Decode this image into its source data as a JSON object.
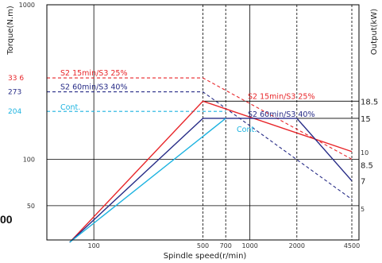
{
  "chart_data": {
    "type": "line",
    "ylabel_left": "Torque(N.m)",
    "ylabel_right": "Output(kW)",
    "xlabel": "Spindle speed(r/min)",
    "x_scale": "log",
    "y_scale": "log",
    "xlim": [
      50,
      5000
    ],
    "ylim_torque": [
      30,
      1000
    ],
    "ylim_output": [
      3.4,
      60
    ],
    "grid": true,
    "x_ticks": [
      {
        "value": 100,
        "label": "100"
      },
      {
        "value": 500,
        "label": "500"
      },
      {
        "value": 700,
        "label": "700"
      },
      {
        "value": 1000,
        "label": "1000"
      },
      {
        "value": 2000,
        "label": "2000"
      },
      {
        "value": 4500,
        "label": "4500"
      }
    ],
    "y_ticks_torque": [
      {
        "value": 50,
        "label": "50"
      },
      {
        "value": 100,
        "label": "100"
      },
      {
        "value": 1000,
        "label": "1000"
      }
    ],
    "y_ticks_output": [
      {
        "value": 5,
        "label": "5"
      },
      {
        "value": 7,
        "label": "7"
      },
      {
        "value": 8.5,
        "label": "8.5"
      },
      {
        "value": 10,
        "label": "10"
      },
      {
        "value": 15,
        "label": "15"
      },
      {
        "value": 18.5,
        "label": "18.5"
      }
    ],
    "torque_levels": [
      {
        "value": 336,
        "label": "33 6",
        "color": "#e8262a"
      },
      {
        "value": 273,
        "label": "273",
        "color": "#262b86"
      },
      {
        "value": 204,
        "label": "204",
        "color": "#1cb3e0"
      }
    ],
    "series": [
      {
        "label": "S2 15min/S3 25%",
        "color": "#e8262a",
        "torque": 336,
        "output_kw": 18.5,
        "output_points": [
          [
            70,
            0
          ],
          [
            500,
            18.5
          ],
          [
            4500,
            10
          ]
        ]
      },
      {
        "label": "S2 60min/S3 40%",
        "color": "#262b86",
        "torque": 273,
        "output_kw": 15,
        "output_points": [
          [
            70,
            0
          ],
          [
            500,
            15
          ],
          [
            2000,
            15
          ],
          [
            4500,
            7
          ]
        ]
      },
      {
        "label": "Cont.",
        "color": "#1cb3e0",
        "torque": 204,
        "output_kw": 15,
        "output_points": [
          [
            70,
            0
          ],
          [
            700,
            15
          ]
        ]
      }
    ],
    "torque_dashed": [
      {
        "color": "#e8262a",
        "points": [
          [
            50,
            336
          ],
          [
            500,
            336
          ],
          [
            4500,
            100
          ]
        ]
      },
      {
        "color": "#262b86",
        "points": [
          [
            50,
            273
          ],
          [
            500,
            273
          ],
          [
            4500,
            55
          ]
        ]
      },
      {
        "color": "#1cb3e0",
        "points": [
          [
            50,
            204
          ],
          [
            700,
            204
          ]
        ]
      }
    ],
    "stray_text": "00"
  }
}
